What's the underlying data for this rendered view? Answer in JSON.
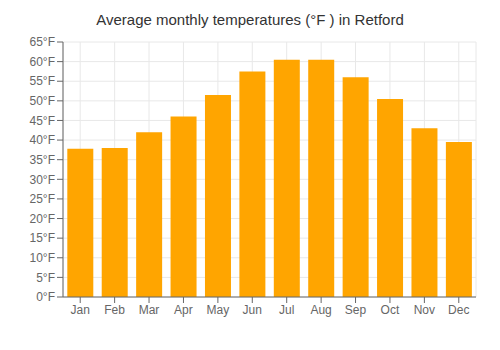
{
  "chart_data": {
    "type": "bar",
    "title": "Average monthly temperatures (°F ) in Retford",
    "categories": [
      "Jan",
      "Feb",
      "Mar",
      "Apr",
      "May",
      "Jun",
      "Jul",
      "Aug",
      "Sep",
      "Oct",
      "Nov",
      "Dec"
    ],
    "values": [
      37.8,
      38.0,
      42.0,
      46.0,
      51.5,
      57.5,
      60.5,
      60.5,
      56.0,
      50.5,
      43.0,
      39.5
    ],
    "color": "#FFA500",
    "ylim": [
      0,
      65
    ],
    "yticks": [
      {
        "value": 0,
        "label": "0°F"
      },
      {
        "value": 5,
        "label": "5°F"
      },
      {
        "value": 10,
        "label": "10°F"
      },
      {
        "value": 15,
        "label": "15°F"
      },
      {
        "value": 20,
        "label": "20°F"
      },
      {
        "value": 25,
        "label": "25°F"
      },
      {
        "value": 30,
        "label": "30°F"
      },
      {
        "value": 35,
        "label": "35°F"
      },
      {
        "value": 40,
        "label": "40°F"
      },
      {
        "value": 45,
        "label": "45°F"
      },
      {
        "value": 50,
        "label": "50°F"
      },
      {
        "value": 55,
        "label": "55°F"
      },
      {
        "value": 60,
        "label": "60°F"
      },
      {
        "value": 65,
        "label": "65°F"
      }
    ],
    "grid": true
  }
}
